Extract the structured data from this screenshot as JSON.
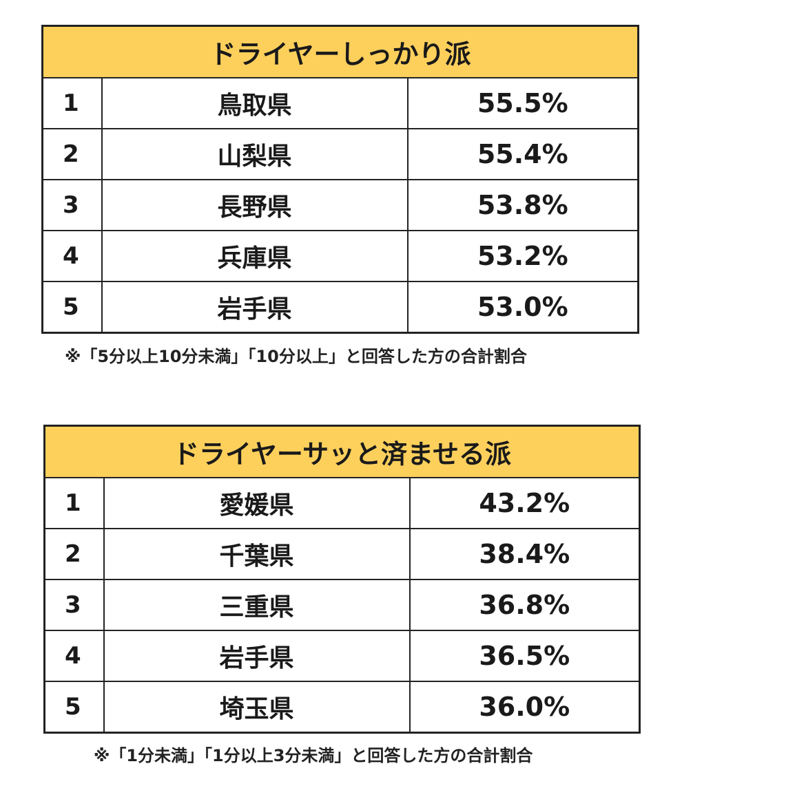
{
  "tables": [
    {
      "title": "ドライヤーしっかり派",
      "rows": [
        {
          "rank": "1",
          "prefecture": "鳥取県",
          "percent": "55.5%"
        },
        {
          "rank": "2",
          "prefecture": "山梨県",
          "percent": "55.4%"
        },
        {
          "rank": "3",
          "prefecture": "長野県",
          "percent": "53.8%"
        },
        {
          "rank": "4",
          "prefecture": "兵庫県",
          "percent": "53.2%"
        },
        {
          "rank": "5",
          "prefecture": "岩手県",
          "percent": "53.0%"
        }
      ],
      "note": "※「5分以上10分未満」「10分以上」と回答した方の合計割合"
    },
    {
      "title": "ドライヤーサッと済ませる派",
      "rows": [
        {
          "rank": "1",
          "prefecture": "愛媛県",
          "percent": "43.2%"
        },
        {
          "rank": "2",
          "prefecture": "千葉県",
          "percent": "38.4%"
        },
        {
          "rank": "3",
          "prefecture": "三重県",
          "percent": "36.8%"
        },
        {
          "rank": "4",
          "prefecture": "岩手県",
          "percent": "36.5%"
        },
        {
          "rank": "5",
          "prefecture": "埼玉県",
          "percent": "36.0%"
        }
      ],
      "note": "※「1分未満」「1分以上3分未満」と回答した方の合計割合"
    }
  ],
  "colors": {
    "header_background": "#fdd05c",
    "border": "#222222"
  }
}
